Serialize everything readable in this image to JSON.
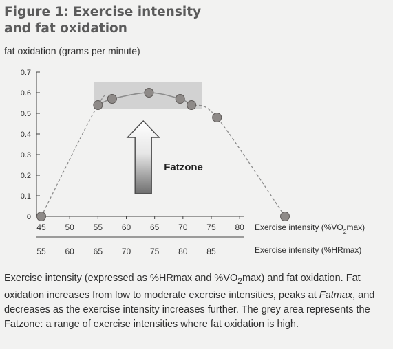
{
  "figure": {
    "title": "Figure 1: Exercise intensity and fat oxidation",
    "caption_parts": [
      {
        "text": "Exercise intensity (expressed as %HRmax and %VO",
        "style": "normal"
      },
      {
        "text": "2",
        "style": "sub"
      },
      {
        "text": "max) and fat oxidation. Fat oxidation increases from low to moderate exercise intensities, peaks at ",
        "style": "normal"
      },
      {
        "text": "Fatmax",
        "style": "italic"
      },
      {
        "text": ", and decreases as the exercise intensity increases further. The grey area represents the Fatzone: a range of exercise intensities where fat oxidation is high.",
        "style": "normal"
      }
    ]
  },
  "chart_data": {
    "type": "scatter",
    "ylabel": "fat oxidation (grams per minute)",
    "xlabel_parts": [
      {
        "text": "Exercise intensity (%VO",
        "style": "normal"
      },
      {
        "text": "2",
        "style": "sub"
      },
      {
        "text": "max)",
        "style": "normal"
      }
    ],
    "x2label": "Exercise intensity (%HRmax)",
    "xlim": [
      45,
      80
    ],
    "ylim": [
      0,
      0.7
    ],
    "x_ticks": [
      45,
      50,
      55,
      60,
      65,
      70,
      75,
      80
    ],
    "y_ticks": [
      0,
      0.1,
      0.2,
      0.3,
      0.4,
      0.5,
      0.6,
      0.7
    ],
    "y_tick_labels": [
      "0",
      "0.1",
      "0.2",
      "0.3",
      "0.4",
      "0.5",
      "0.6",
      "0.7"
    ],
    "x2_ticks": [
      {
        "at": 45,
        "label": "55"
      },
      {
        "at": 50,
        "label": "60"
      },
      {
        "at": 55,
        "label": "65"
      },
      {
        "at": 60,
        "label": "70"
      },
      {
        "at": 65,
        "label": "75"
      },
      {
        "at": 70,
        "label": "80"
      },
      {
        "at": 75,
        "label": "85"
      }
    ],
    "series": [
      {
        "points": [
          {
            "x": 45,
            "y": 0.0
          },
          {
            "x": 55,
            "y": 0.54
          },
          {
            "x": 57.5,
            "y": 0.57
          },
          {
            "x": 64,
            "y": 0.6
          },
          {
            "x": 69.5,
            "y": 0.57
          },
          {
            "x": 71.5,
            "y": 0.54
          },
          {
            "x": 76,
            "y": 0.48
          },
          {
            "x": 88,
            "y": 0.0
          }
        ]
      }
    ],
    "fatzone": {
      "x_range": [
        54.3,
        73.4
      ],
      "y_range": [
        0.52,
        0.65
      ],
      "color": "#d2d2d2"
    },
    "arrow_label": "Fatzone",
    "arrow_x": 63,
    "marker_color": "#8e8a88",
    "curve_color": "#8c8c8c"
  }
}
